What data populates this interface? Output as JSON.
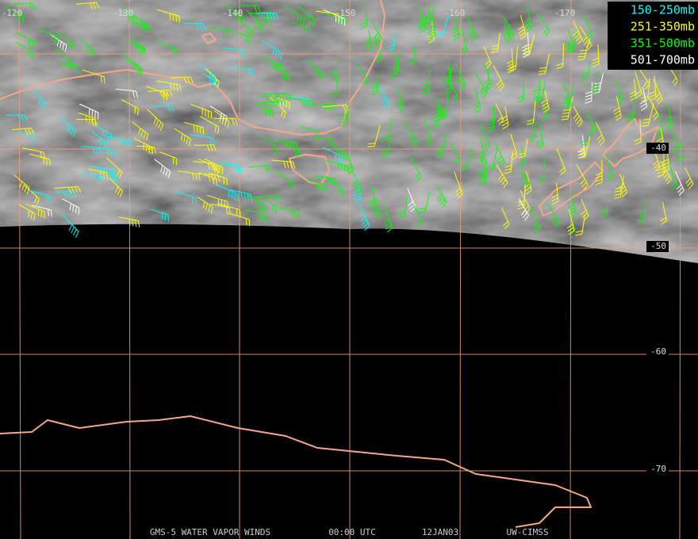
{
  "grid": {
    "longitudes": [
      "-120",
      "-130",
      "-140",
      "-150",
      "-160",
      "-170"
    ],
    "latitudes": [
      "-40",
      "-50",
      "-60",
      "-70"
    ]
  },
  "legend": [
    {
      "label": "150-250mb",
      "color": "#00ffff"
    },
    {
      "label": "251-350mb",
      "color": "#ffff00"
    },
    {
      "label": "351-500mb",
      "color": "#00ff00"
    },
    {
      "label": "501-700mb",
      "color": "#ffffff"
    }
  ],
  "footer": [
    "GMS-5 WATER VAPOR WINDS",
    "00:00 UTC",
    "12JAN03",
    "UW-CIMSS"
  ]
}
